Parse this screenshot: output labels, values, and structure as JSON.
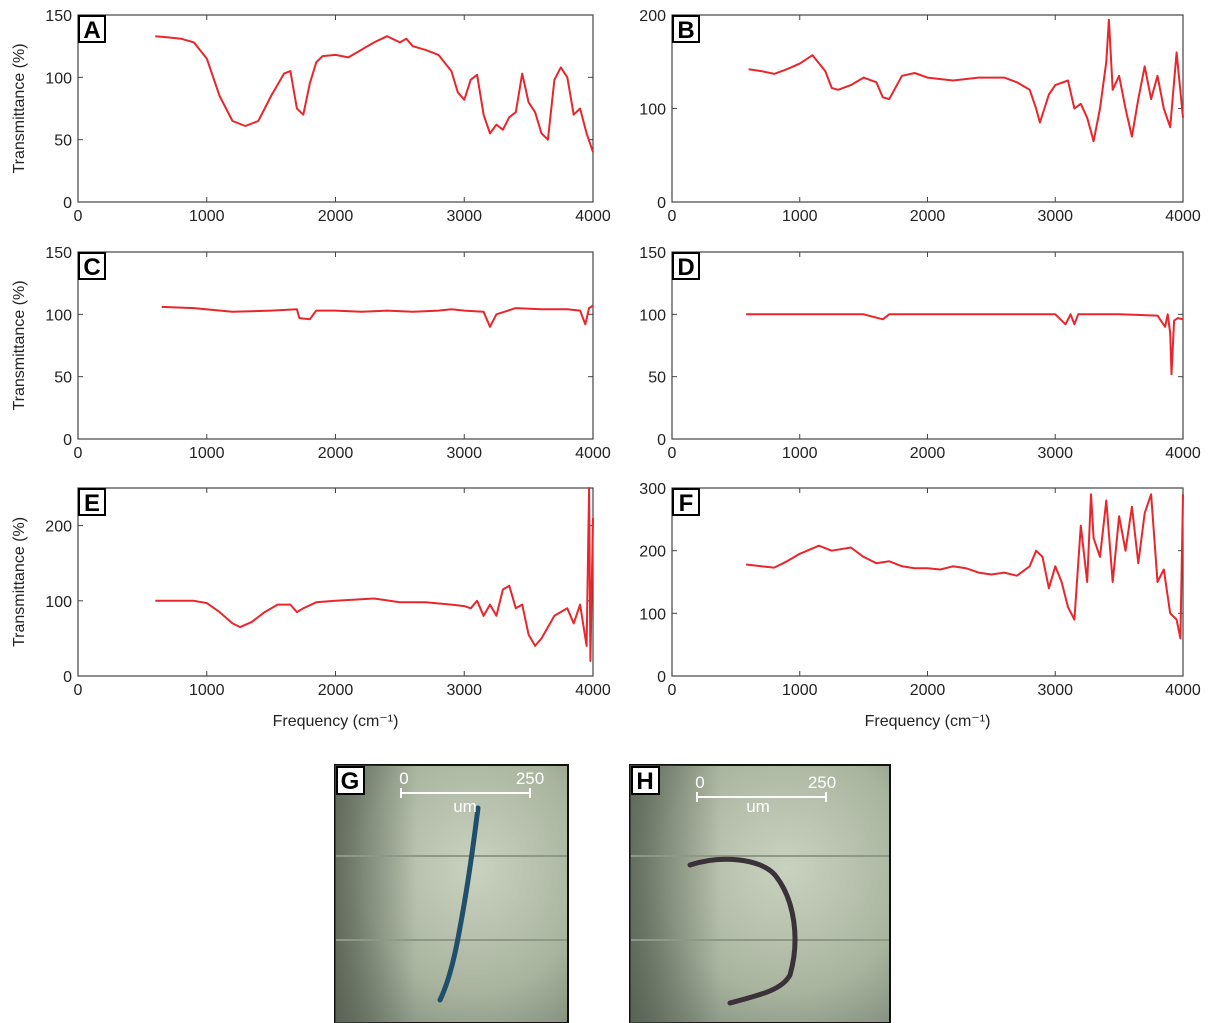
{
  "chart_data": [
    {
      "type": "line",
      "title": "A",
      "y_label": "Transmittance (%)",
      "color": "#e8262b",
      "x": [
        600,
        700,
        800,
        900,
        1000,
        1100,
        1200,
        1300,
        1400,
        1500,
        1600,
        1650,
        1700,
        1750,
        1800,
        1850,
        1900,
        2000,
        2100,
        2200,
        2300,
        2400,
        2500,
        2550,
        2600,
        2700,
        2800,
        2900,
        2950,
        3000,
        3050,
        3100,
        3150,
        3200,
        3250,
        3300,
        3350,
        3400,
        3450,
        3500,
        3550,
        3600,
        3650,
        3700,
        3750,
        3800,
        3850,
        3900,
        3950,
        4000
      ],
      "values": [
        133,
        132,
        131,
        128,
        115,
        85,
        65,
        61,
        65,
        85,
        103,
        105,
        75,
        70,
        95,
        112,
        117,
        118,
        116,
        122,
        128,
        133,
        128,
        131,
        125,
        122,
        118,
        105,
        88,
        82,
        98,
        102,
        70,
        55,
        62,
        58,
        68,
        72,
        103,
        80,
        72,
        55,
        50,
        98,
        108,
        100,
        70,
        75,
        55,
        40
      ],
      "xlim": [
        0,
        4000
      ],
      "xticks": [
        0,
        1000,
        2000,
        3000,
        4000
      ],
      "ylim": [
        0,
        150
      ],
      "yticks": [
        0,
        50,
        100,
        150
      ]
    },
    {
      "type": "line",
      "title": "B",
      "color": "#e8262b",
      "x": [
        600,
        700,
        800,
        900,
        1000,
        1100,
        1200,
        1250,
        1300,
        1400,
        1500,
        1600,
        1650,
        1700,
        1800,
        1900,
        2000,
        2200,
        2400,
        2600,
        2700,
        2800,
        2850,
        2880,
        2950,
        3000,
        3100,
        3150,
        3200,
        3250,
        3300,
        3350,
        3400,
        3420,
        3450,
        3500,
        3550,
        3600,
        3650,
        3700,
        3750,
        3800,
        3850,
        3900,
        3950,
        4000
      ],
      "values": [
        142,
        140,
        137,
        142,
        148,
        157,
        140,
        122,
        120,
        125,
        133,
        128,
        112,
        110,
        135,
        138,
        133,
        130,
        133,
        133,
        128,
        120,
        100,
        85,
        115,
        125,
        130,
        100,
        105,
        90,
        65,
        100,
        150,
        195,
        120,
        135,
        100,
        70,
        110,
        145,
        110,
        135,
        100,
        80,
        160,
        90
      ],
      "xlim": [
        0,
        4000
      ],
      "xticks": [
        0,
        1000,
        2000,
        3000,
        4000
      ],
      "ylim": [
        0,
        200
      ],
      "yticks": [
        0,
        100,
        200
      ]
    },
    {
      "type": "line",
      "title": "C",
      "y_label": "Transmittance (%)",
      "color": "#e8262b",
      "x": [
        650,
        900,
        1200,
        1500,
        1700,
        1720,
        1800,
        1850,
        2000,
        2200,
        2400,
        2600,
        2800,
        2900,
        3000,
        3150,
        3200,
        3250,
        3400,
        3600,
        3800,
        3900,
        3940,
        3970,
        4000
      ],
      "values": [
        106,
        105,
        102,
        103,
        104,
        97,
        96,
        103,
        103,
        102,
        103,
        102,
        103,
        104,
        103,
        102,
        90,
        100,
        105,
        104,
        104,
        103,
        92,
        105,
        107
      ],
      "xlim": [
        0,
        4000
      ],
      "xticks": [
        0,
        1000,
        2000,
        3000,
        4000
      ],
      "ylim": [
        0,
        150
      ],
      "yticks": [
        0,
        50,
        100,
        150
      ]
    },
    {
      "type": "line",
      "title": "D",
      "color": "#e8262b",
      "x": [
        580,
        1000,
        1500,
        1650,
        1700,
        2000,
        2500,
        3000,
        3080,
        3120,
        3150,
        3180,
        3500,
        3800,
        3860,
        3880,
        3900,
        3910,
        3930,
        3960,
        4000
      ],
      "values": [
        100,
        100,
        100,
        96,
        100,
        100,
        100,
        100,
        92,
        100,
        92,
        100,
        100,
        99,
        90,
        100,
        85,
        52,
        95,
        97,
        96
      ],
      "xlim": [
        0,
        4000
      ],
      "xticks": [
        0,
        1000,
        2000,
        3000,
        4000
      ],
      "ylim": [
        0,
        150
      ],
      "yticks": [
        0,
        50,
        100,
        150
      ]
    },
    {
      "type": "line",
      "title": "E",
      "y_label": "Transmittance (%)",
      "x_label": "Frequency (cm⁻¹)",
      "color": "#e8262b",
      "x": [
        600,
        800,
        900,
        1000,
        1100,
        1200,
        1260,
        1350,
        1450,
        1550,
        1650,
        1700,
        1750,
        1850,
        2000,
        2200,
        2300,
        2500,
        2700,
        2900,
        3000,
        3050,
        3100,
        3150,
        3200,
        3250,
        3300,
        3350,
        3400,
        3450,
        3500,
        3550,
        3600,
        3700,
        3800,
        3850,
        3900,
        3950,
        3970,
        3980,
        4000
      ],
      "values": [
        100,
        100,
        100,
        97,
        85,
        70,
        65,
        72,
        85,
        95,
        95,
        85,
        90,
        98,
        100,
        102,
        103,
        98,
        98,
        95,
        93,
        90,
        100,
        80,
        95,
        80,
        115,
        120,
        90,
        95,
        55,
        40,
        50,
        80,
        90,
        70,
        95,
        40,
        250,
        20,
        210
      ],
      "xlim": [
        0,
        4000
      ],
      "xticks": [
        0,
        1000,
        2000,
        3000,
        4000
      ],
      "ylim": [
        0,
        250
      ],
      "yticks": [
        0,
        100,
        200
      ]
    },
    {
      "type": "line",
      "title": "F",
      "x_label": "Frequency (cm⁻¹)",
      "color": "#e8262b",
      "x": [
        580,
        700,
        800,
        900,
        1000,
        1150,
        1250,
        1400,
        1500,
        1600,
        1700,
        1800,
        1900,
        2000,
        2100,
        2200,
        2300,
        2400,
        2500,
        2600,
        2700,
        2800,
        2850,
        2900,
        2950,
        3000,
        3050,
        3100,
        3150,
        3200,
        3250,
        3280,
        3300,
        3350,
        3400,
        3450,
        3500,
        3550,
        3600,
        3650,
        3700,
        3750,
        3800,
        3850,
        3900,
        3950,
        3980,
        4000
      ],
      "values": [
        178,
        175,
        173,
        183,
        195,
        208,
        200,
        205,
        190,
        180,
        183,
        175,
        172,
        172,
        170,
        175,
        172,
        165,
        162,
        165,
        160,
        175,
        200,
        190,
        140,
        175,
        150,
        110,
        90,
        240,
        150,
        290,
        220,
        190,
        280,
        150,
        255,
        200,
        270,
        180,
        260,
        290,
        150,
        170,
        100,
        90,
        60,
        290
      ],
      "xlim": [
        0,
        4000
      ],
      "xticks": [
        0,
        1000,
        2000,
        3000,
        4000
      ],
      "ylim": [
        0,
        300
      ],
      "yticks": [
        0,
        100,
        200,
        300
      ]
    }
  ],
  "images": [
    {
      "label": "G",
      "scale_start": "0",
      "scale_end": "250",
      "unit": "um"
    },
    {
      "label": "H",
      "scale_start": "0",
      "scale_end": "250",
      "unit": "um"
    }
  ]
}
